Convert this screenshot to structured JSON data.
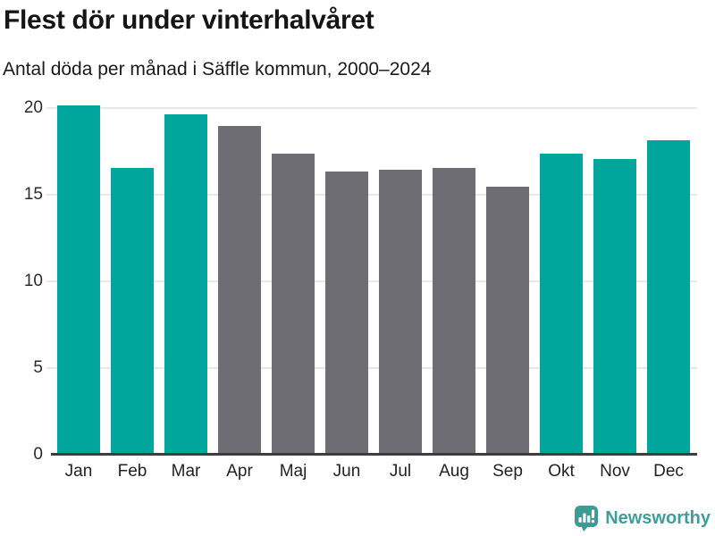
{
  "header": {
    "title": "Flest dör under vinterhalvåret",
    "subtitle": "Antal döda per månad i Säffle kommun, 2000–2024"
  },
  "chart_data": {
    "type": "bar",
    "title": "Flest dör under vinterhalvåret",
    "subtitle": "Antal döda per månad i Säffle kommun, 2000–2024",
    "categories": [
      "Jan",
      "Feb",
      "Mar",
      "Apr",
      "Maj",
      "Jun",
      "Jul",
      "Aug",
      "Sep",
      "Okt",
      "Nov",
      "Dec"
    ],
    "values": [
      20.1,
      16.5,
      19.6,
      18.9,
      17.3,
      16.3,
      16.4,
      16.5,
      15.4,
      17.3,
      17.0,
      18.1
    ],
    "highlighted": [
      true,
      true,
      true,
      false,
      false,
      false,
      false,
      false,
      false,
      true,
      true,
      true
    ],
    "xlabel": "",
    "ylabel": "",
    "ylim": [
      0,
      20
    ],
    "yticks": [
      0,
      5,
      10,
      15,
      20
    ],
    "grid": true,
    "legend": "none",
    "colors": {
      "highlight": "#00a59b",
      "base": "#6e6d74",
      "gridline": "#e8e8e8",
      "axis": "#3d3d3d"
    }
  },
  "footer": {
    "brand": "Newsworthy",
    "brand_color": "#3f9e98",
    "logo_color": "#3d9a94",
    "logo_icon": "bar-chart-speech-bubble"
  }
}
